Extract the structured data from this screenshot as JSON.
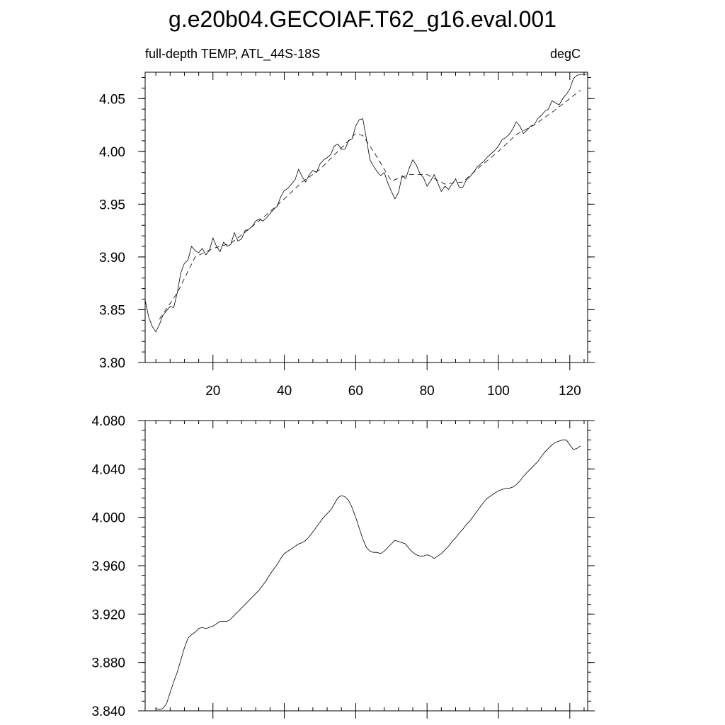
{
  "title": "g.e20b04.GECOIAF.T62_g16.eval.001",
  "chart_data": [
    {
      "type": "line",
      "left_label": "full-depth TEMP, ATL_44S-18S",
      "right_label": "degC",
      "xlim": [
        1,
        125
      ],
      "ylim": [
        3.8,
        4.075
      ],
      "x_ticks": [
        20,
        40,
        60,
        80,
        100,
        120
      ],
      "x_tick_labels": [
        "20",
        "40",
        "60",
        "80",
        "100",
        "120"
      ],
      "y_ticks": [
        3.8,
        3.85,
        3.9,
        3.95,
        4.0,
        4.05
      ],
      "y_tick_labels": [
        "3.80",
        "3.85",
        "3.90",
        "3.95",
        "4.00",
        "4.05"
      ],
      "grid": false,
      "series": [
        {
          "style": "solid",
          "x": [
            1,
            2,
            3,
            4,
            5,
            6,
            7,
            8,
            9,
            10,
            11,
            12,
            13,
            14,
            15,
            16,
            17,
            18,
            19,
            20,
            21,
            22,
            23,
            24,
            25,
            26,
            27,
            28,
            29,
            30,
            31,
            32,
            33,
            34,
            35,
            36,
            37,
            38,
            39,
            40,
            41,
            42,
            43,
            44,
            45,
            46,
            47,
            48,
            49,
            50,
            51,
            52,
            53,
            54,
            55,
            56,
            57,
            58,
            59,
            60,
            61,
            62,
            63,
            64,
            65,
            66,
            67,
            68,
            69,
            70,
            71,
            72,
            73,
            74,
            75,
            76,
            77,
            78,
            79,
            80,
            81,
            82,
            83,
            84,
            85,
            86,
            87,
            88,
            89,
            90,
            91,
            92,
            93,
            94,
            95,
            96,
            97,
            98,
            99,
            100,
            101,
            102,
            103,
            104,
            105,
            106,
            107,
            108,
            109,
            110,
            111,
            112,
            113,
            114,
            115,
            116,
            117,
            118,
            119,
            120,
            121,
            122,
            123,
            124,
            125
          ],
          "values": [
            3.859,
            3.843,
            3.834,
            3.829,
            3.836,
            3.845,
            3.849,
            3.853,
            3.852,
            3.866,
            3.885,
            3.894,
            3.897,
            3.91,
            3.906,
            3.904,
            3.908,
            3.902,
            3.906,
            3.918,
            3.91,
            3.905,
            3.914,
            3.91,
            3.912,
            3.923,
            3.915,
            3.917,
            3.925,
            3.926,
            3.929,
            3.934,
            3.936,
            3.934,
            3.937,
            3.941,
            3.945,
            3.948,
            3.957,
            3.963,
            3.965,
            3.969,
            3.973,
            3.983,
            3.976,
            3.971,
            3.978,
            3.982,
            3.98,
            3.988,
            3.992,
            3.994,
            3.997,
            4.005,
            4.007,
            4.002,
            4.002,
            4.01,
            4.012,
            4.024,
            4.03,
            4.031,
            4.012,
            3.992,
            3.986,
            3.981,
            3.977,
            3.98,
            3.97,
            3.962,
            3.955,
            3.961,
            3.977,
            3.974,
            3.984,
            3.992,
            3.987,
            3.979,
            3.975,
            3.967,
            3.972,
            3.978,
            3.97,
            3.962,
            3.967,
            3.964,
            3.969,
            3.974,
            3.966,
            3.966,
            3.973,
            3.976,
            3.98,
            3.985,
            3.988,
            3.991,
            3.995,
            3.998,
            4.001,
            4.005,
            4.011,
            4.013,
            4.016,
            4.021,
            4.028,
            4.024,
            4.017,
            4.02,
            4.024,
            4.025,
            4.031,
            4.034,
            4.038,
            4.04,
            4.048,
            4.046,
            4.044,
            4.05,
            4.054,
            4.059,
            4.069,
            4.072,
            4.073,
            4.073,
            4.073
          ]
        },
        {
          "style": "dashed",
          "x": [
            5,
            10,
            15,
            20,
            25,
            30,
            35,
            40,
            45,
            50,
            55,
            60,
            62,
            65,
            70,
            75,
            80,
            85,
            90,
            95,
            100,
            105,
            110,
            115,
            120,
            123
          ],
          "values": [
            3.841,
            3.866,
            3.9,
            3.908,
            3.913,
            3.926,
            3.94,
            3.955,
            3.971,
            3.983,
            4.0,
            4.017,
            4.015,
            4.0,
            3.972,
            3.978,
            3.978,
            3.969,
            3.971,
            3.986,
            4.0,
            4.016,
            4.025,
            4.037,
            4.05,
            4.058
          ]
        }
      ]
    },
    {
      "type": "line",
      "xlim": [
        1,
        125
      ],
      "ylim": [
        3.84,
        4.08
      ],
      "x_ticks": [
        20,
        40,
        60,
        80,
        100,
        120
      ],
      "y_ticks": [
        3.84,
        3.88,
        3.92,
        3.96,
        4.0,
        4.04,
        4.08
      ],
      "y_tick_labels": [
        "3.840",
        "3.880",
        "3.920",
        "3.960",
        "4.000",
        "4.040",
        "4.080"
      ],
      "grid": false,
      "series": [
        {
          "style": "solid",
          "x": [
            4,
            5,
            6,
            7,
            8,
            9,
            10,
            11,
            12,
            13,
            14,
            15,
            16,
            17,
            18,
            19,
            20,
            21,
            22,
            23,
            24,
            25,
            26,
            27,
            28,
            29,
            30,
            31,
            32,
            33,
            34,
            35,
            36,
            37,
            38,
            39,
            40,
            41,
            42,
            43,
            44,
            45,
            46,
            47,
            48,
            49,
            50,
            51,
            52,
            53,
            54,
            55,
            56,
            57,
            58,
            59,
            60,
            61,
            62,
            63,
            64,
            65,
            66,
            67,
            68,
            69,
            70,
            71,
            72,
            73,
            74,
            75,
            76,
            77,
            78,
            79,
            80,
            81,
            82,
            83,
            84,
            85,
            86,
            87,
            88,
            89,
            90,
            91,
            92,
            93,
            94,
            95,
            96,
            97,
            98,
            99,
            100,
            101,
            102,
            103,
            104,
            105,
            106,
            107,
            108,
            109,
            110,
            111,
            112,
            113,
            114,
            115,
            116,
            117,
            118,
            119,
            120,
            121,
            122,
            123
          ],
          "values": [
            3.842,
            3.841,
            3.842,
            3.846,
            3.855,
            3.864,
            3.872,
            3.882,
            3.892,
            3.9,
            3.903,
            3.905,
            3.908,
            3.909,
            3.908,
            3.909,
            3.91,
            3.912,
            3.914,
            3.914,
            3.914,
            3.916,
            3.919,
            3.922,
            3.925,
            3.928,
            3.931,
            3.934,
            3.937,
            3.94,
            3.944,
            3.948,
            3.953,
            3.957,
            3.961,
            3.966,
            3.97,
            3.972,
            3.974,
            3.976,
            3.978,
            3.979,
            3.981,
            3.984,
            3.988,
            3.992,
            3.996,
            4.0,
            4.003,
            4.006,
            4.011,
            4.016,
            4.018,
            4.017,
            4.014,
            4.008,
            4.0,
            3.991,
            3.982,
            3.975,
            3.972,
            3.971,
            3.971,
            3.97,
            3.972,
            3.975,
            3.978,
            3.981,
            3.98,
            3.979,
            3.978,
            3.974,
            3.971,
            3.969,
            3.968,
            3.968,
            3.969,
            3.968,
            3.966,
            3.968,
            3.97,
            3.973,
            3.976,
            3.98,
            3.983,
            3.987,
            3.99,
            3.994,
            3.997,
            4.001,
            4.005,
            4.009,
            4.013,
            4.016,
            4.018,
            4.02,
            4.022,
            4.023,
            4.024,
            4.024,
            4.025,
            4.027,
            4.03,
            4.034,
            4.037,
            4.04,
            4.043,
            4.046,
            4.05,
            4.054,
            4.057,
            4.06,
            4.062,
            4.063,
            4.064,
            4.064,
            4.06,
            4.056,
            4.057,
            4.059
          ]
        }
      ]
    }
  ]
}
